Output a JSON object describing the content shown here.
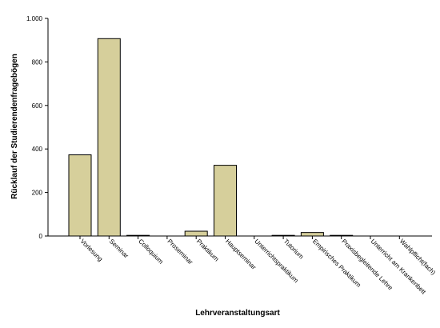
{
  "chart_data": {
    "type": "bar",
    "title": "",
    "xlabel": "Lehrveranstaltungsart",
    "ylabel": "Rücklauf der Studierendenfragebögen",
    "ylim": [
      0,
      1000
    ],
    "yticks": [
      0,
      200,
      400,
      600,
      800,
      1000
    ],
    "ytick_labels": [
      "0",
      "200",
      "400",
      "600",
      "800",
      "1.000"
    ],
    "grid": false,
    "legend": "none",
    "bar_color": "#d6cf9b",
    "categories": [
      "Vorlesung",
      "Seminar",
      "Colloquium",
      "Proseminar",
      "Praktikum",
      "Hauptseminar",
      "Unterrichtspraktikum",
      "Tutorium",
      "Empirisches Praktikum",
      "Praxisbegleitende Lehre",
      "Unterricht am Krankenbett",
      "Wahlpflicht(fach)"
    ],
    "values": [
      373,
      907,
      3,
      0,
      22,
      325,
      0,
      3,
      16,
      3,
      0,
      0
    ]
  }
}
